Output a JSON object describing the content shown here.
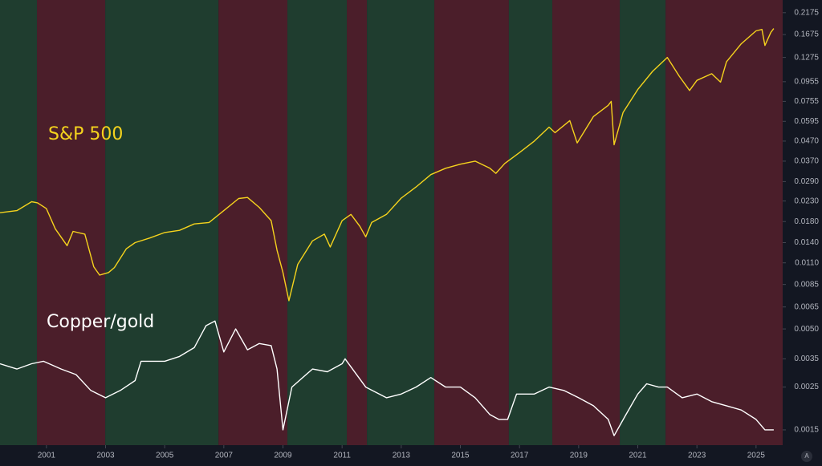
{
  "chart_data": {
    "type": "line",
    "log_y": true,
    "grid": false,
    "xlim": [
      1999.43,
      2025.9
    ],
    "ylim": [
      0.00125,
      0.253
    ],
    "xticks": [
      2001,
      2003,
      2005,
      2007,
      2009,
      2011,
      2013,
      2015,
      2017,
      2019,
      2021,
      2023,
      2025
    ],
    "yticks": [
      0.2175,
      0.1675,
      0.1275,
      0.0955,
      0.0755,
      0.0595,
      {
        "value": 0.047,
        "label": "0.0470"
      },
      {
        "value": 0.037,
        "label": "0.0370"
      },
      {
        "value": 0.029,
        "label": "0.0290"
      },
      {
        "value": 0.023,
        "label": "0.0230"
      },
      {
        "value": 0.018,
        "label": "0.0180"
      },
      {
        "value": 0.014,
        "label": "0.0140"
      },
      {
        "value": 0.011,
        "label": "0.0110"
      },
      0.0085,
      0.0065,
      {
        "value": 0.005,
        "label": "0.0050"
      },
      0.0035,
      0.0025,
      0.0015
    ],
    "regimes": [
      {
        "start": 1999.43,
        "end": 2000.68,
        "color": "#1f3d2f"
      },
      {
        "start": 2000.68,
        "end": 2002.99,
        "color": "#4b1e2a"
      },
      {
        "start": 2002.99,
        "end": 2006.82,
        "color": "#1f3d2f"
      },
      {
        "start": 2006.82,
        "end": 2009.15,
        "color": "#4b1e2a"
      },
      {
        "start": 2009.15,
        "end": 2011.16,
        "color": "#1f3d2f"
      },
      {
        "start": 2011.16,
        "end": 2011.84,
        "color": "#4b1e2a"
      },
      {
        "start": 2011.84,
        "end": 2014.12,
        "color": "#1f3d2f"
      },
      {
        "start": 2014.12,
        "end": 2016.64,
        "color": "#4b1e2a"
      },
      {
        "start": 2016.64,
        "end": 2018.11,
        "color": "#1f3d2f"
      },
      {
        "start": 2018.11,
        "end": 2020.39,
        "color": "#4b1e2a"
      },
      {
        "start": 2020.39,
        "end": 2021.94,
        "color": "#1f3d2f"
      },
      {
        "start": 2021.94,
        "end": 2025.9,
        "color": "#4b1e2a"
      }
    ],
    "series": [
      {
        "name": "S&P 500",
        "color": "#f5d31d",
        "x": [
          1999.43,
          2000.0,
          2000.5,
          2000.7,
          2001.0,
          2001.3,
          2001.7,
          2001.9,
          2002.3,
          2002.6,
          2002.8,
          2003.1,
          2003.3,
          2003.7,
          2004.0,
          2004.5,
          2005.0,
          2005.5,
          2006.0,
          2006.5,
          2007.0,
          2007.5,
          2007.8,
          2008.2,
          2008.6,
          2008.8,
          2009.0,
          2009.2,
          2009.5,
          2010.0,
          2010.4,
          2010.6,
          2011.0,
          2011.3,
          2011.6,
          2011.8,
          2012.0,
          2012.5,
          2013.0,
          2013.5,
          2014.0,
          2014.5,
          2015.0,
          2015.5,
          2016.0,
          2016.2,
          2016.5,
          2017.0,
          2017.5,
          2018.0,
          2018.2,
          2018.7,
          2018.95,
          2019.5,
          2020.0,
          2020.1,
          2020.2,
          2020.5,
          2021.0,
          2021.5,
          2022.0,
          2022.4,
          2022.75,
          2023.0,
          2023.5,
          2023.8,
          2024.0,
          2024.5,
          2025.0,
          2025.2,
          2025.3,
          2025.5,
          2025.6
        ],
        "values": [
          0.02,
          0.0205,
          0.0228,
          0.0225,
          0.021,
          0.0165,
          0.0135,
          0.016,
          0.0155,
          0.0105,
          0.0095,
          0.0098,
          0.0104,
          0.013,
          0.014,
          0.0148,
          0.0158,
          0.0162,
          0.0175,
          0.0178,
          0.0205,
          0.0237,
          0.024,
          0.0213,
          0.0182,
          0.0128,
          0.0098,
          0.007,
          0.0108,
          0.0143,
          0.0155,
          0.0133,
          0.0182,
          0.0196,
          0.017,
          0.015,
          0.0178,
          0.0196,
          0.0238,
          0.0272,
          0.0315,
          0.034,
          0.0357,
          0.037,
          0.034,
          0.032,
          0.036,
          0.041,
          0.047,
          0.0555,
          0.052,
          0.06,
          0.046,
          0.063,
          0.072,
          0.0755,
          0.045,
          0.066,
          0.087,
          0.108,
          0.1275,
          0.102,
          0.086,
          0.097,
          0.105,
          0.095,
          0.121,
          0.15,
          0.175,
          0.178,
          0.147,
          0.172,
          0.18
        ]
      },
      {
        "name": "Copper/gold",
        "color": "#ffffff",
        "x": [
          1999.43,
          2000.0,
          2000.5,
          2000.9,
          2001.5,
          2002.0,
          2002.5,
          2003.0,
          2003.5,
          2004.0,
          2004.2,
          2005.0,
          2005.5,
          2006.0,
          2006.4,
          2006.7,
          2007.0,
          2007.4,
          2007.8,
          2008.2,
          2008.6,
          2008.8,
          2009.0,
          2009.3,
          2010.0,
          2010.5,
          2011.0,
          2011.1,
          2011.8,
          2012.5,
          2013.0,
          2013.5,
          2014.0,
          2014.5,
          2015.0,
          2015.5,
          2016.0,
          2016.3,
          2016.6,
          2016.9,
          2017.5,
          2018.0,
          2018.5,
          2019.0,
          2019.5,
          2020.0,
          2020.2,
          2020.6,
          2021.0,
          2021.3,
          2021.7,
          2022.0,
          2022.5,
          2023.0,
          2023.5,
          2024.0,
          2024.5,
          2025.0,
          2025.3,
          2025.6
        ],
        "values": [
          0.0033,
          0.0031,
          0.0033,
          0.0034,
          0.0031,
          0.0029,
          0.0024,
          0.0022,
          0.0024,
          0.0027,
          0.0034,
          0.0034,
          0.0036,
          0.004,
          0.0052,
          0.0055,
          0.0038,
          0.005,
          0.0039,
          0.0042,
          0.0041,
          0.0031,
          0.0015,
          0.0025,
          0.0031,
          0.003,
          0.0033,
          0.0035,
          0.0025,
          0.0022,
          0.0023,
          0.0025,
          0.0028,
          0.0025,
          0.0025,
          0.0022,
          0.0018,
          0.0017,
          0.0017,
          0.0023,
          0.0023,
          0.0025,
          0.0024,
          0.0022,
          0.002,
          0.0017,
          0.0014,
          0.0018,
          0.0023,
          0.0026,
          0.0025,
          0.0025,
          0.0022,
          0.0023,
          0.0021,
          0.002,
          0.0019,
          0.0017,
          0.0015,
          0.0015
        ]
      }
    ]
  },
  "controls": {
    "auto_scale": "A"
  }
}
